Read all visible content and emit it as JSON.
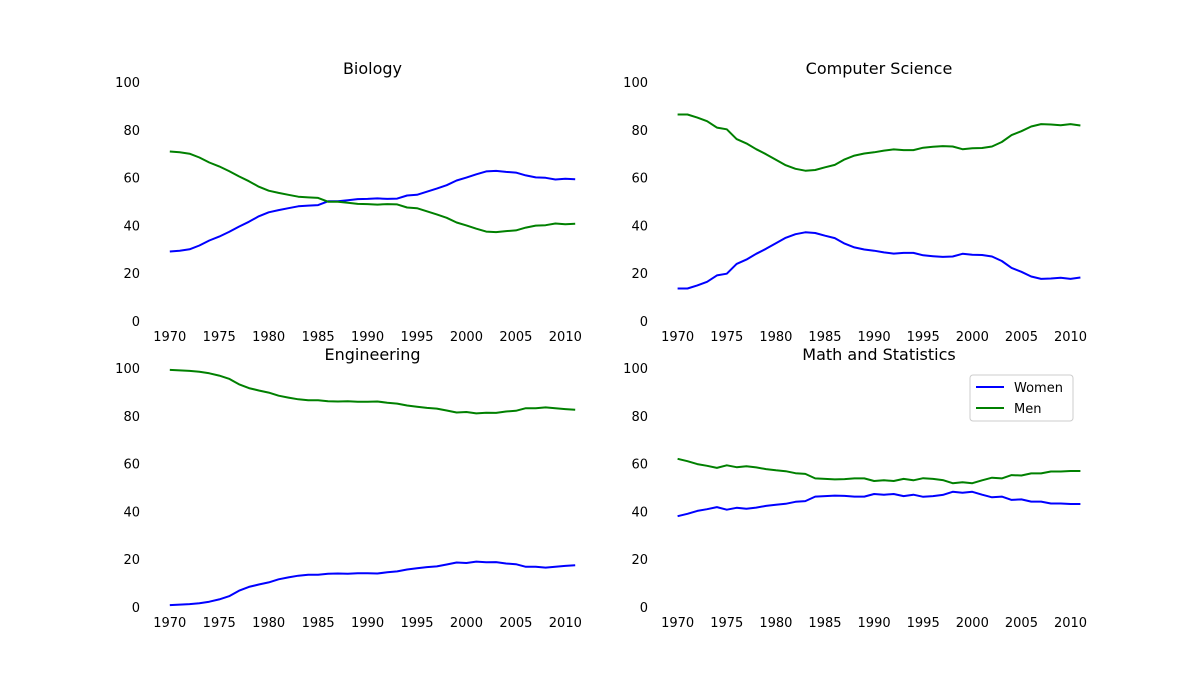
{
  "colors": {
    "women": "#0000ff",
    "men": "#008000"
  },
  "chart_data": [
    {
      "type": "line",
      "title": "Biology",
      "x": [
        1970,
        1971,
        1972,
        1973,
        1974,
        1975,
        1976,
        1977,
        1978,
        1979,
        1980,
        1981,
        1982,
        1983,
        1984,
        1985,
        1986,
        1987,
        1988,
        1989,
        1990,
        1991,
        1992,
        1993,
        1994,
        1995,
        1996,
        1997,
        1998,
        1999,
        2000,
        2001,
        2002,
        2003,
        2004,
        2005,
        2006,
        2007,
        2008,
        2009,
        2010,
        2011
      ],
      "series": [
        {
          "name": "Women",
          "values": [
            29.1,
            29.4,
            30.0,
            31.6,
            33.7,
            35.3,
            37.3,
            39.5,
            41.5,
            43.8,
            45.5,
            46.4,
            47.2,
            48.0,
            48.3,
            48.5,
            50.1,
            50.1,
            50.5,
            51.0,
            51.1,
            51.3,
            51.1,
            51.2,
            52.5,
            52.8,
            54.1,
            55.4,
            56.8,
            58.8,
            60.0,
            61.4,
            62.6,
            62.8,
            62.4,
            62.1,
            60.9,
            60.1,
            59.9,
            59.2,
            59.5,
            59.3
          ]
        },
        {
          "name": "Men",
          "values": [
            70.9,
            70.6,
            70.0,
            68.4,
            66.3,
            64.7,
            62.7,
            60.5,
            58.5,
            56.2,
            54.5,
            53.6,
            52.8,
            52.0,
            51.7,
            51.5,
            49.9,
            49.9,
            49.5,
            49.0,
            48.9,
            48.7,
            48.9,
            48.8,
            47.5,
            47.2,
            45.9,
            44.6,
            43.2,
            41.2,
            40.0,
            38.6,
            37.4,
            37.2,
            37.6,
            37.9,
            39.1,
            39.9,
            40.1,
            40.8,
            40.5,
            40.7
          ]
        }
      ],
      "ylim": [
        0,
        100
      ],
      "xticks": [
        1970,
        1975,
        1980,
        1985,
        1990,
        1995,
        2000,
        2005,
        2010
      ],
      "yticks": [
        0,
        20,
        40,
        60,
        80,
        100
      ],
      "legend": false
    },
    {
      "type": "line",
      "title": "Computer Science",
      "x": [
        1970,
        1971,
        1972,
        1973,
        1974,
        1975,
        1976,
        1977,
        1978,
        1979,
        1980,
        1981,
        1982,
        1983,
        1984,
        1985,
        1986,
        1987,
        1988,
        1989,
        1990,
        1991,
        1992,
        1993,
        1994,
        1995,
        1996,
        1997,
        1998,
        1999,
        2000,
        2001,
        2002,
        2003,
        2004,
        2005,
        2006,
        2007,
        2008,
        2009,
        2010,
        2011
      ],
      "series": [
        {
          "name": "Women",
          "values": [
            13.6,
            13.6,
            14.9,
            16.4,
            19.1,
            19.8,
            23.9,
            25.7,
            28.1,
            30.2,
            32.5,
            34.8,
            36.3,
            37.1,
            36.8,
            35.7,
            34.7,
            32.4,
            30.8,
            29.9,
            29.4,
            28.7,
            28.2,
            28.5,
            28.5,
            27.5,
            27.1,
            26.8,
            27.0,
            28.1,
            27.7,
            27.6,
            27.0,
            25.1,
            22.2,
            20.6,
            18.6,
            17.6,
            17.8,
            18.1,
            17.6,
            18.2
          ]
        },
        {
          "name": "Men",
          "values": [
            86.4,
            86.4,
            85.1,
            83.6,
            80.9,
            80.2,
            76.1,
            74.3,
            71.9,
            69.8,
            67.5,
            65.2,
            63.7,
            62.9,
            63.2,
            64.3,
            65.3,
            67.6,
            69.2,
            70.1,
            70.6,
            71.3,
            71.8,
            71.5,
            71.5,
            72.5,
            72.9,
            73.2,
            73.0,
            71.9,
            72.3,
            72.4,
            73.0,
            74.9,
            77.8,
            79.4,
            81.4,
            82.4,
            82.2,
            81.9,
            82.4,
            81.8
          ]
        }
      ],
      "ylim": [
        0,
        100
      ],
      "xticks": [
        1970,
        1975,
        1980,
        1985,
        1990,
        1995,
        2000,
        2005,
        2010
      ],
      "yticks": [
        0,
        20,
        40,
        60,
        80,
        100
      ],
      "legend": false
    },
    {
      "type": "line",
      "title": "Engineering",
      "x": [
        1970,
        1971,
        1972,
        1973,
        1974,
        1975,
        1976,
        1977,
        1978,
        1979,
        1980,
        1981,
        1982,
        1983,
        1984,
        1985,
        1986,
        1987,
        1988,
        1989,
        1990,
        1991,
        1992,
        1993,
        1994,
        1995,
        1996,
        1997,
        1998,
        1999,
        2000,
        2001,
        2002,
        2003,
        2004,
        2005,
        2006,
        2007,
        2008,
        2009,
        2010,
        2011
      ],
      "series": [
        {
          "name": "Women",
          "values": [
            0.8,
            1.0,
            1.2,
            1.6,
            2.2,
            3.2,
            4.5,
            6.8,
            8.4,
            9.4,
            10.3,
            11.6,
            12.4,
            13.1,
            13.5,
            13.5,
            13.9,
            14.0,
            13.9,
            14.1,
            14.1,
            14.0,
            14.5,
            14.9,
            15.7,
            16.2,
            16.7,
            17.0,
            17.8,
            18.6,
            18.4,
            19.0,
            18.7,
            18.8,
            18.2,
            17.9,
            16.8,
            16.8,
            16.5,
            16.8,
            17.2,
            17.5
          ]
        },
        {
          "name": "Men",
          "values": [
            99.2,
            99.0,
            98.8,
            98.4,
            97.8,
            96.8,
            95.5,
            93.2,
            91.6,
            90.6,
            89.7,
            88.4,
            87.6,
            86.9,
            86.5,
            86.5,
            86.1,
            86.0,
            86.1,
            85.9,
            85.9,
            86.0,
            85.5,
            85.1,
            84.3,
            83.8,
            83.3,
            83.0,
            82.2,
            81.4,
            81.6,
            81.0,
            81.3,
            81.2,
            81.8,
            82.1,
            83.2,
            83.2,
            83.5,
            83.2,
            82.8,
            82.5
          ]
        }
      ],
      "ylim": [
        0,
        100
      ],
      "xticks": [
        1970,
        1975,
        1980,
        1985,
        1990,
        1995,
        2000,
        2005,
        2010
      ],
      "yticks": [
        0,
        20,
        40,
        60,
        80,
        100
      ],
      "legend": false
    },
    {
      "type": "line",
      "title": "Math and Statistics",
      "x": [
        1970,
        1971,
        1972,
        1973,
        1974,
        1975,
        1976,
        1977,
        1978,
        1979,
        1980,
        1981,
        1982,
        1983,
        1984,
        1985,
        1986,
        1987,
        1988,
        1989,
        1990,
        1991,
        1992,
        1993,
        1994,
        1995,
        1996,
        1997,
        1998,
        1999,
        2000,
        2001,
        2002,
        2003,
        2004,
        2005,
        2006,
        2007,
        2008,
        2009,
        2010,
        2011
      ],
      "series": [
        {
          "name": "Women",
          "values": [
            38.0,
            39.0,
            40.2,
            40.9,
            41.8,
            40.7,
            41.5,
            41.1,
            41.6,
            42.3,
            42.8,
            43.2,
            44.0,
            44.3,
            46.2,
            46.4,
            46.6,
            46.5,
            46.2,
            46.2,
            47.3,
            47.0,
            47.3,
            46.4,
            47.0,
            46.1,
            46.4,
            46.9,
            48.2,
            47.8,
            48.2,
            47.0,
            45.9,
            46.2,
            44.8,
            45.0,
            44.1,
            44.1,
            43.3,
            43.3,
            43.1,
            43.1
          ]
        },
        {
          "name": "Men",
          "values": [
            62.0,
            61.0,
            59.8,
            59.1,
            58.2,
            59.3,
            58.5,
            58.9,
            58.4,
            57.7,
            57.2,
            56.8,
            56.0,
            55.7,
            53.8,
            53.6,
            53.4,
            53.5,
            53.8,
            53.8,
            52.7,
            53.0,
            52.7,
            53.6,
            53.0,
            53.9,
            53.6,
            53.1,
            51.8,
            52.2,
            51.8,
            53.0,
            54.1,
            53.8,
            55.2,
            55.0,
            55.9,
            55.9,
            56.7,
            56.7,
            56.9,
            56.9
          ]
        }
      ],
      "ylim": [
        0,
        100
      ],
      "xticks": [
        1970,
        1975,
        1980,
        1985,
        1990,
        1995,
        2000,
        2005,
        2010
      ],
      "yticks": [
        0,
        20,
        40,
        60,
        80,
        100
      ],
      "legend": true,
      "legend_position": "upper-right",
      "legend_entries": [
        "Women",
        "Men"
      ]
    }
  ]
}
